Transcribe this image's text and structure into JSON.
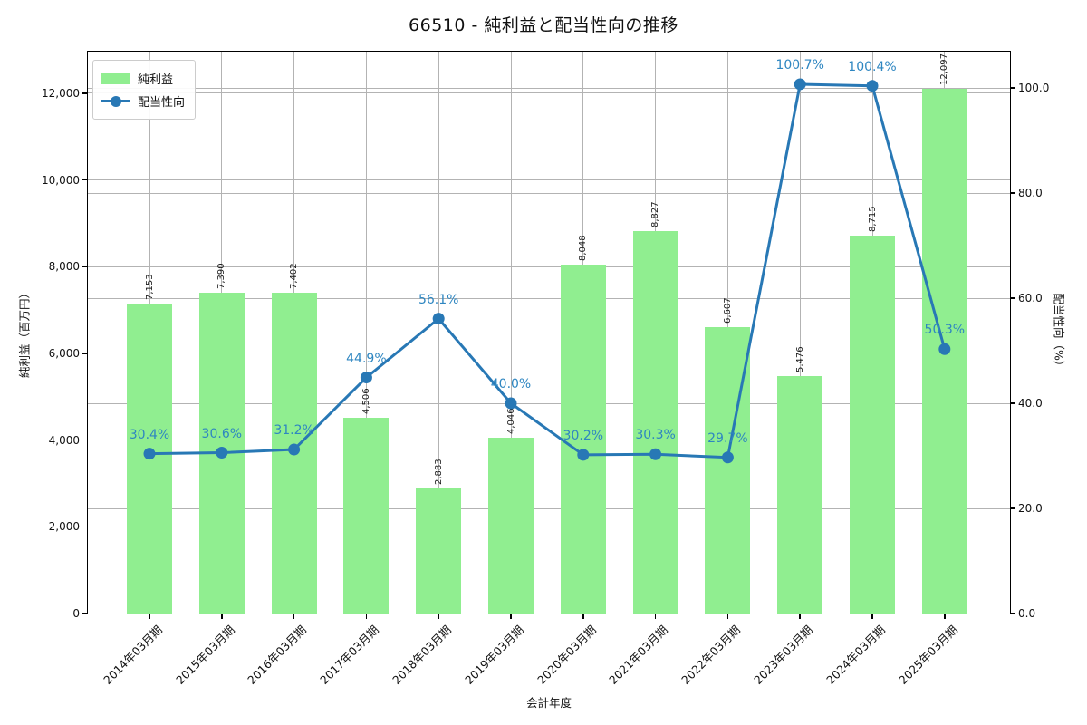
{
  "title": "66510 - 純利益と配当性向の推移",
  "chart_data": {
    "type": "bar+line",
    "categories": [
      "2014年03月期",
      "2015年03月期",
      "2016年03月期",
      "2017年03月期",
      "2018年03月期",
      "2019年03月期",
      "2020年03月期",
      "2021年03月期",
      "2022年03月期",
      "2023年03月期",
      "2024年03月期",
      "2025年03月期"
    ],
    "series": [
      {
        "name": "純利益",
        "type": "bar",
        "yaxis": "left",
        "color": "#90ee90",
        "values": [
          7153,
          7390,
          7402,
          4506,
          2883,
          4046,
          8048,
          8827,
          6607,
          5476,
          8715,
          12097
        ],
        "labels": [
          "7,153",
          "7,390",
          "7,402",
          "4,506",
          "2,883",
          "4,046",
          "8,048",
          "8,827",
          "6,607",
          "5,476",
          "8,715",
          "12,097"
        ]
      },
      {
        "name": "配当性向",
        "type": "line",
        "yaxis": "right",
        "color": "#2878b5",
        "marker": "circle",
        "label_color": "#2e86c1",
        "values": [
          30.4,
          30.6,
          31.2,
          44.9,
          56.1,
          40.0,
          30.2,
          30.3,
          29.7,
          100.7,
          100.4,
          50.3
        ],
        "labels": [
          "30.4%",
          "30.6%",
          "31.2%",
          "44.9%",
          "56.1%",
          "40.0%",
          "30.2%",
          "30.3%",
          "29.7%",
          "100.7%",
          "100.4%",
          "50.3%"
        ]
      }
    ],
    "xlabel": "会計年度",
    "ylabel_left": "純利益（百万円）",
    "ylabel_right": "配当性向（%）",
    "ylim_left": [
      0,
      12960
    ],
    "ylim_right": [
      0,
      106.9
    ],
    "yticks_left": {
      "values": [
        0,
        2000,
        4000,
        6000,
        8000,
        10000,
        12000
      ],
      "labels": [
        "0",
        "2,000",
        "4,000",
        "6,000",
        "8,000",
        "10,000",
        "12,000"
      ]
    },
    "yticks_right": {
      "values": [
        0,
        20,
        40,
        60,
        80,
        100
      ],
      "labels": [
        "0.0",
        "20.0",
        "40.0",
        "60.0",
        "80.0",
        "100.0"
      ]
    },
    "grid": true,
    "legend": {
      "position": "upper-left",
      "items": [
        "純利益",
        "配当性向"
      ]
    }
  },
  "colors": {
    "bar": "#90ee90",
    "line": "#2878b5",
    "annotation": "#2e86c1",
    "grid": "#b3b3b3",
    "spine": "#000000",
    "background": "#ffffff"
  }
}
